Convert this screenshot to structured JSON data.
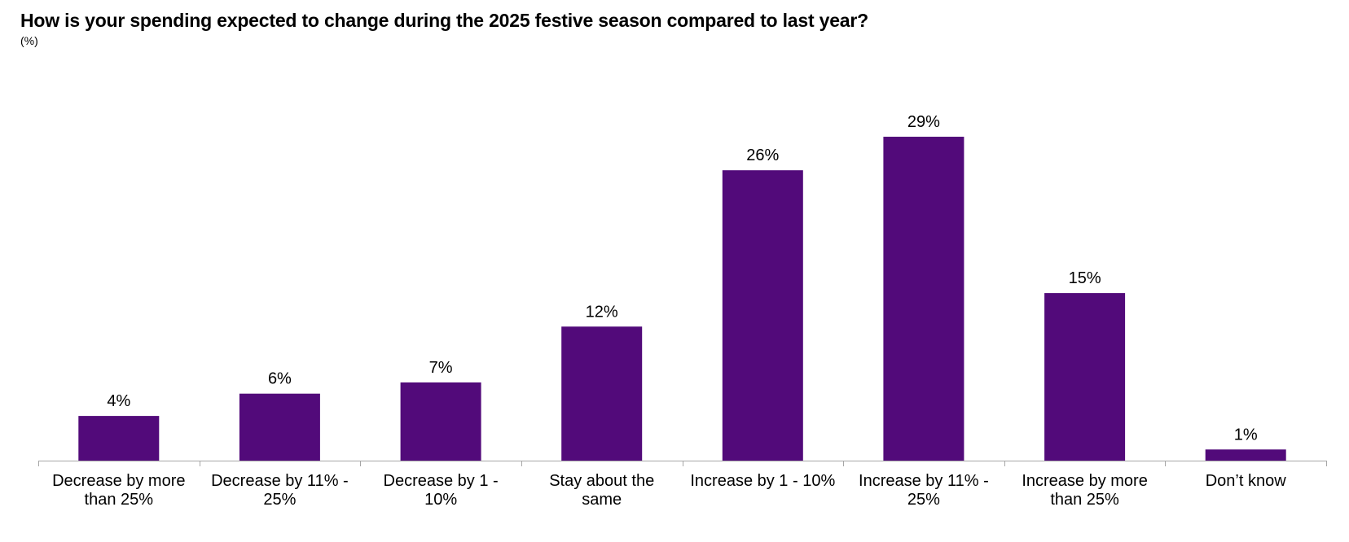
{
  "chart_data": {
    "type": "bar",
    "title": "How is your spending expected to change during the 2025 festive season compared to last year?",
    "subtitle": "(%)",
    "xlabel": "",
    "ylabel": "",
    "ylim": [
      0,
      30
    ],
    "grid": false,
    "legend": "none",
    "bar_color": "#520a7a",
    "axis_color": "#a6a6a6",
    "categories": [
      [
        "Decrease by more",
        "than 25%"
      ],
      [
        "Decrease by 11% -",
        "25%"
      ],
      [
        "Decrease by 1 -",
        "10%"
      ],
      [
        "Stay about the",
        "same"
      ],
      [
        "Increase by 1 - 10%"
      ],
      [
        "Increase by 11% -",
        "25%"
      ],
      [
        "Increase by more",
        "than 25%"
      ],
      [
        "Don’t know"
      ]
    ],
    "values": [
      4,
      6,
      7,
      12,
      26,
      29,
      15,
      1
    ],
    "data_labels": [
      "4%",
      "6%",
      "7%",
      "12%",
      "26%",
      "29%",
      "15%",
      "1%"
    ]
  }
}
